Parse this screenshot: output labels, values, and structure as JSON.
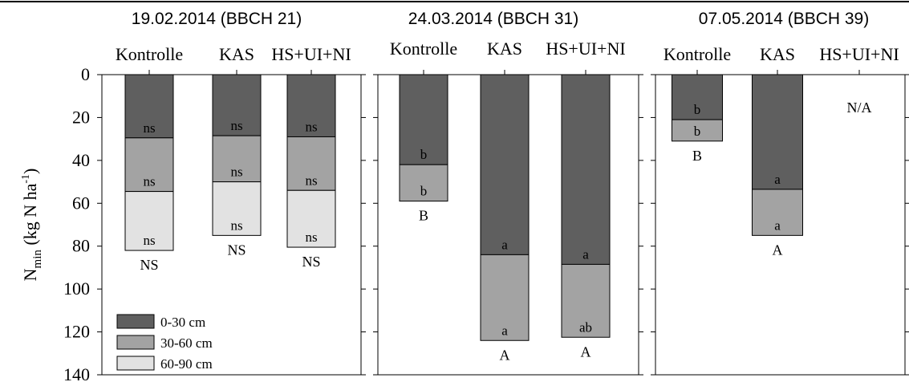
{
  "chart_data": {
    "type": "bar",
    "stacked": true,
    "orientation": "vertical-downward",
    "ylabel": {
      "main": "N",
      "sub": "min",
      "unit_open": " (kg N ha",
      "unit_sup": "-1",
      "unit_close": ")"
    },
    "ylim": [
      0,
      140
    ],
    "y_ticks": [
      "0",
      "20",
      "40",
      "60",
      "80",
      "100",
      "120",
      "140"
    ],
    "y_tick_values": [
      0,
      20,
      40,
      60,
      80,
      100,
      120,
      140
    ],
    "legend_placement": "bottom-left of first panel",
    "legend": [
      {
        "label": "0-30 cm",
        "color": "#5f5f5f"
      },
      {
        "label": "30-60 cm",
        "color": "#a3a3a3"
      },
      {
        "label": "60-90 cm",
        "color": "#e2e2e2"
      }
    ],
    "categories": [
      "Kontrolle",
      "KAS",
      "HS+UI+NI"
    ],
    "panels": [
      {
        "title": "19.02.2014 (BBCH 21)",
        "bars": [
          {
            "category": "Kontrolle",
            "layers": [
              29.5,
              25,
              27.5
            ],
            "layer_labels": [
              "ns",
              "ns",
              "ns"
            ],
            "total_label": "NS"
          },
          {
            "category": "KAS",
            "layers": [
              28.5,
              21.5,
              25
            ],
            "layer_labels": [
              "ns",
              "ns",
              "ns"
            ],
            "total_label": "NS"
          },
          {
            "category": "HS+UI+NI",
            "layers": [
              29,
              25,
              26.5
            ],
            "layer_labels": [
              "ns",
              "ns",
              "ns"
            ],
            "total_label": "NS"
          }
        ]
      },
      {
        "title": "24.03.2014 (BBCH 31)",
        "bars": [
          {
            "category": "Kontrolle",
            "layers": [
              42,
              17
            ],
            "layer_labels": [
              "b",
              "b"
            ],
            "total_label": "B"
          },
          {
            "category": "KAS",
            "layers": [
              84,
              40
            ],
            "layer_labels": [
              "a",
              "a"
            ],
            "total_label": "A"
          },
          {
            "category": "HS+UI+NI",
            "layers": [
              88.5,
              34
            ],
            "layer_labels": [
              "a",
              "ab"
            ],
            "total_label": "A"
          }
        ]
      },
      {
        "title": "07.05.2014 (BBCH 39)",
        "bars": [
          {
            "category": "Kontrolle",
            "layers": [
              21,
              10
            ],
            "layer_labels": [
              "b",
              "b"
            ],
            "total_label": "B"
          },
          {
            "category": "KAS",
            "layers": [
              53.5,
              21.5
            ],
            "layer_labels": [
              "a",
              "a"
            ],
            "total_label": "A"
          },
          {
            "category": "HS+UI+NI",
            "layers": [],
            "layer_labels": [],
            "total_label": "",
            "missing_label": "N/A"
          }
        ]
      }
    ]
  }
}
